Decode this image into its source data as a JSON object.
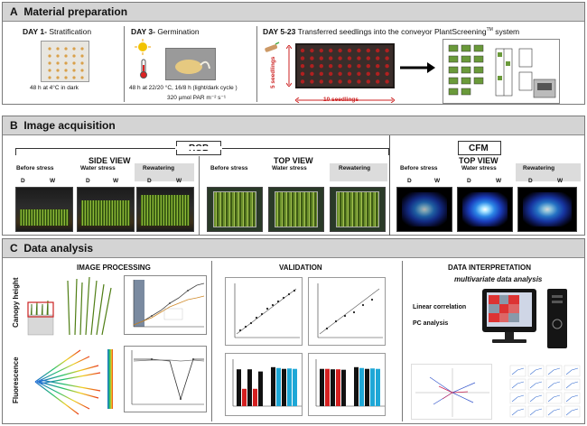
{
  "section_a": {
    "letter": "A",
    "title": "Material preparation",
    "day1": {
      "day": "DAY 1-",
      "step": "Stratification",
      "caption": "48 h at 4°C in dark"
    },
    "day3": {
      "day": "DAY 3-",
      "step": "Germination",
      "caption1": "48 h at 22/20 °C, 16/8 h (light/dark cycle )",
      "caption2": "320 µmol PAR m⁻² s⁻¹"
    },
    "day5": {
      "day": "DAY 5-23",
      "text": "Transferred seedlings into the conveyor PlantScreening",
      "tm": "TM",
      "text_end": "system",
      "seedlings_vertical": "5 seedlings",
      "seedlings_horizontal": "10 seedlings"
    }
  },
  "section_b": {
    "letter": "B",
    "title": "Image acquisition",
    "rgb_label": "RGB",
    "cfm_label": "CFM",
    "side_view": "SIDE VIEW",
    "top_view_rgb": "TOP VIEW",
    "top_view_cfm": "TOP VIEW",
    "conditions": [
      "Before stress",
      "Water stress",
      "Rewatering"
    ],
    "d": "D",
    "w": "W"
  },
  "section_c": {
    "letter": "C",
    "title": "Data analysis",
    "image_processing": "IMAGE PROCESSING",
    "validation": "VALIDATION",
    "data_interpretation": "DATA INTERPRETATION",
    "multivariate": "multivariate data analysis",
    "canopy_height": "Canopy height",
    "fluorescence": "Fluorescence",
    "linear_correlation": "Linear correlation",
    "pc_analysis": "PC analysis"
  },
  "colors": {
    "section_header": "#d4d4d4",
    "bar_red": "#d42020",
    "bar_blue": "#1ea7d6",
    "bar_black": "#111111",
    "arrow_red": "#cc2222",
    "tray_red": "#b02020"
  },
  "icons": [
    "thermometer-icon",
    "sun-icon",
    "arrow-right-icon",
    "monitor-icon",
    "computer-tower-icon"
  ]
}
